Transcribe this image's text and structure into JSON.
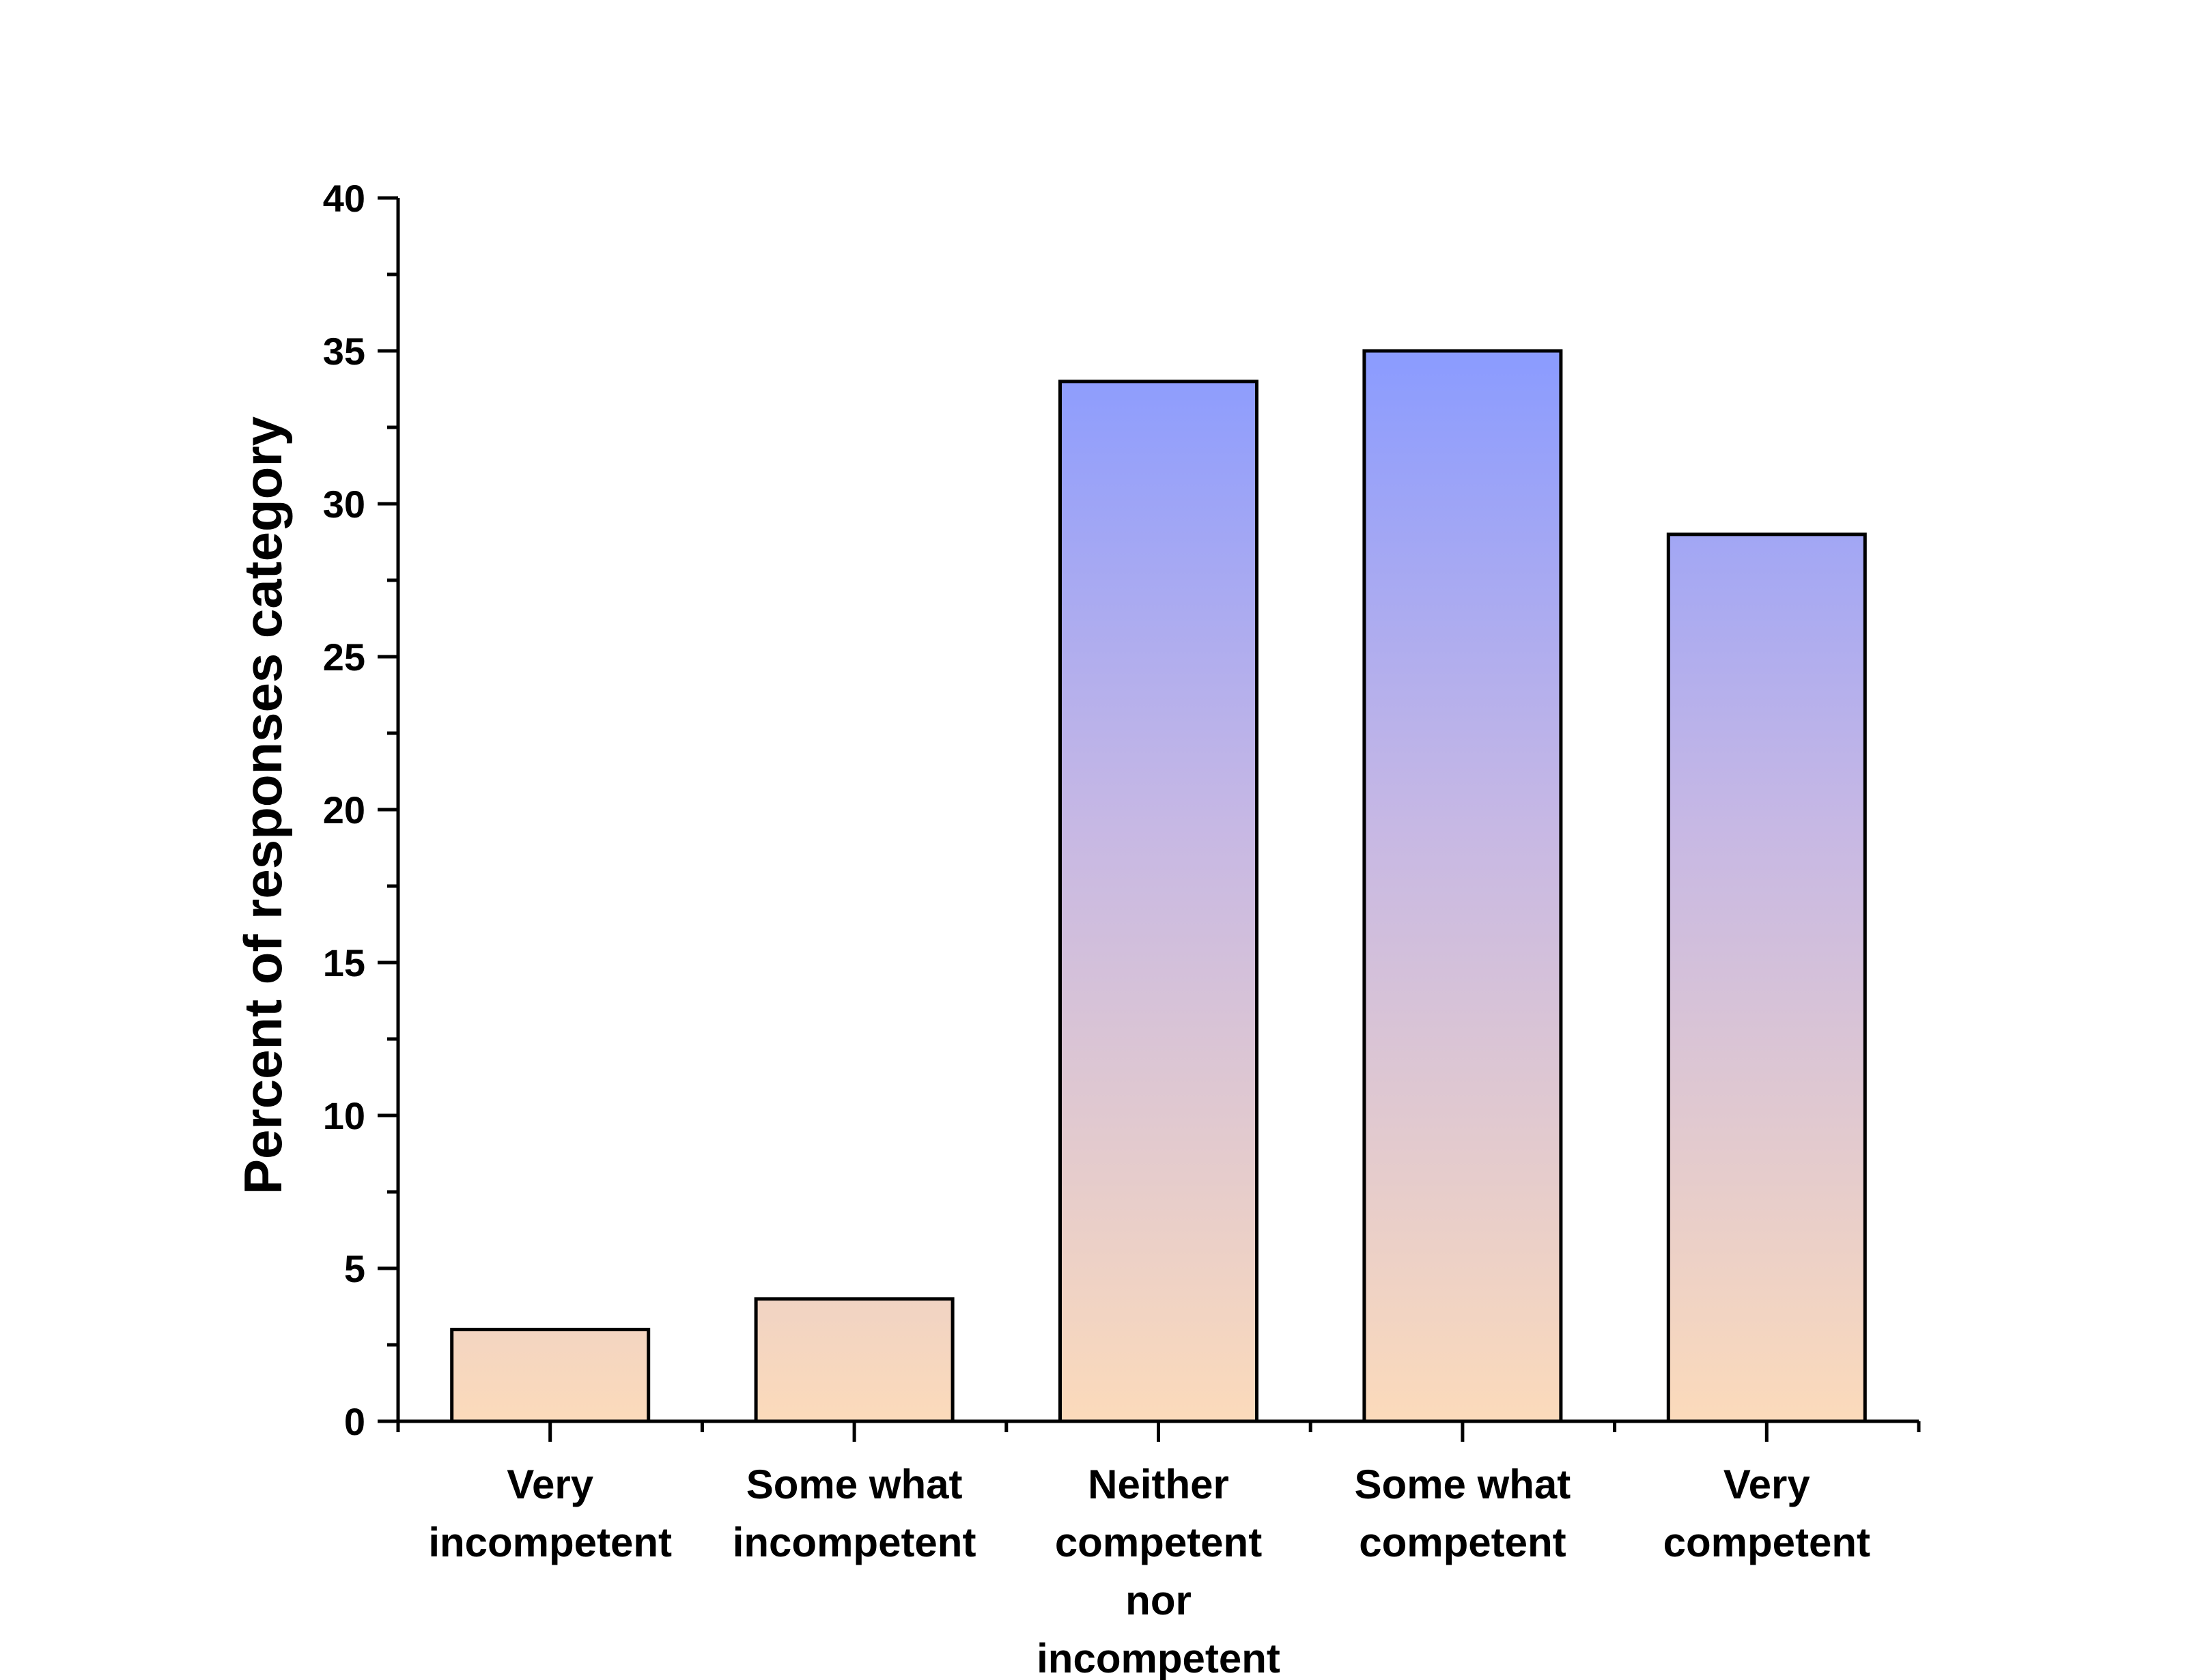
{
  "chart_data": {
    "type": "bar",
    "title": "",
    "xlabel": "",
    "ylabel": "Percent of responses category",
    "ylim": [
      0,
      40
    ],
    "yticks": [
      0,
      5,
      10,
      15,
      20,
      25,
      30,
      35,
      40
    ],
    "grid": false,
    "categories": [
      [
        "Very",
        "incompetent"
      ],
      [
        "Some what",
        "incompetent"
      ],
      [
        "Neither",
        "competent",
        "nor",
        "incompetent"
      ],
      [
        "Some what",
        "competent"
      ],
      [
        "Very",
        "competent"
      ]
    ],
    "values": [
      3,
      4,
      34,
      35,
      29
    ],
    "colors": {
      "bar_gradient_top": "#8a9bff",
      "bar_gradient_mid": "#c7b8e4",
      "bar_gradient_bottom": "#fbdabb",
      "bar_outline": "#000000",
      "axis": "#000000"
    }
  }
}
